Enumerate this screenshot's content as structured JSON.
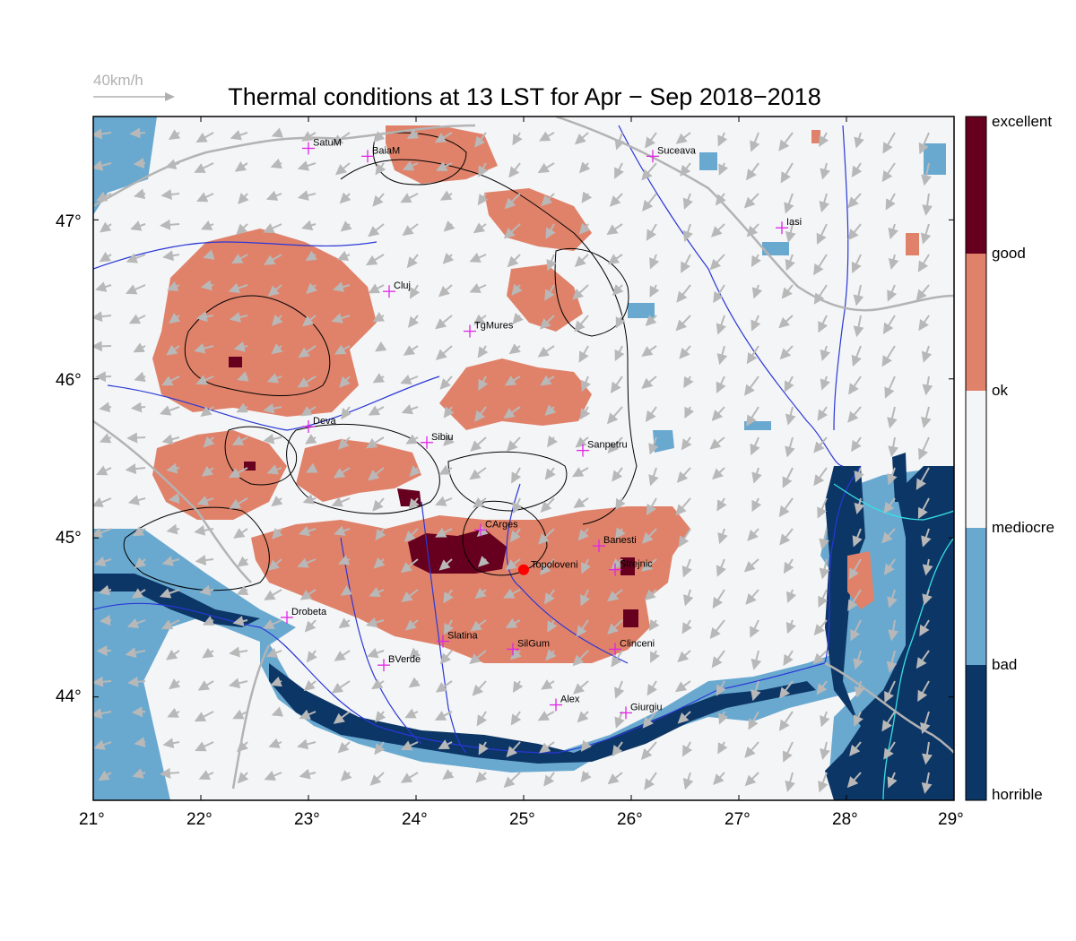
{
  "title": "Thermal conditions at 13 LST for Apr − Sep  2018−2018",
  "wind_reference": "40km/h",
  "map": {
    "lon_range": [
      21,
      29
    ],
    "lat_range": [
      43.35,
      47.65
    ],
    "x_ticks": [
      "21°",
      "22°",
      "23°",
      "24°",
      "25°",
      "26°",
      "27°",
      "28°",
      "29°"
    ],
    "y_ticks": [
      "47°",
      "46°",
      "45°",
      "44°"
    ]
  },
  "colorbar": {
    "labels": [
      "excellent",
      "good",
      "ok",
      "mediocre",
      "bad",
      "horrible"
    ],
    "colors": {
      "excellent": "#67001f",
      "good": "#e0826a",
      "ok": "#f4f5f7",
      "mediocre": "#f4f5f7",
      "bad": "#69a9d0",
      "horrible": "#0c3665"
    }
  },
  "cities": [
    {
      "name": "SatuM",
      "lon": 23.0,
      "lat": 47.45
    },
    {
      "name": "BaiaM",
      "lon": 23.55,
      "lat": 47.4
    },
    {
      "name": "Suceava",
      "lon": 26.2,
      "lat": 47.4
    },
    {
      "name": "Iasi",
      "lon": 27.4,
      "lat": 46.95
    },
    {
      "name": "Cluj",
      "lon": 23.75,
      "lat": 46.55
    },
    {
      "name": "TgMures",
      "lon": 24.5,
      "lat": 46.3
    },
    {
      "name": "Deva",
      "lon": 23.0,
      "lat": 45.7
    },
    {
      "name": "Sibiu",
      "lon": 24.1,
      "lat": 45.6
    },
    {
      "name": "Sanpetru",
      "lon": 25.55,
      "lat": 45.55
    },
    {
      "name": "CArges",
      "lon": 24.6,
      "lat": 45.05
    },
    {
      "name": "Banesti",
      "lon": 25.7,
      "lat": 44.95
    },
    {
      "name": "Strejnic",
      "lon": 25.85,
      "lat": 44.8
    },
    {
      "name": "Drobeta",
      "lon": 22.8,
      "lat": 44.5
    },
    {
      "name": "Slatina",
      "lon": 24.25,
      "lat": 44.35
    },
    {
      "name": "SilGum",
      "lon": 24.9,
      "lat": 44.3
    },
    {
      "name": "Clinceni",
      "lon": 25.85,
      "lat": 44.3
    },
    {
      "name": "BVerde",
      "lon": 23.7,
      "lat": 44.2
    },
    {
      "name": "Alex",
      "lon": 25.3,
      "lat": 43.95
    },
    {
      "name": "Giurgiu",
      "lon": 25.95,
      "lat": 43.9
    }
  ],
  "highlight_site": {
    "name": "Topoloveni",
    "lon": 25.0,
    "lat": 44.8
  }
}
